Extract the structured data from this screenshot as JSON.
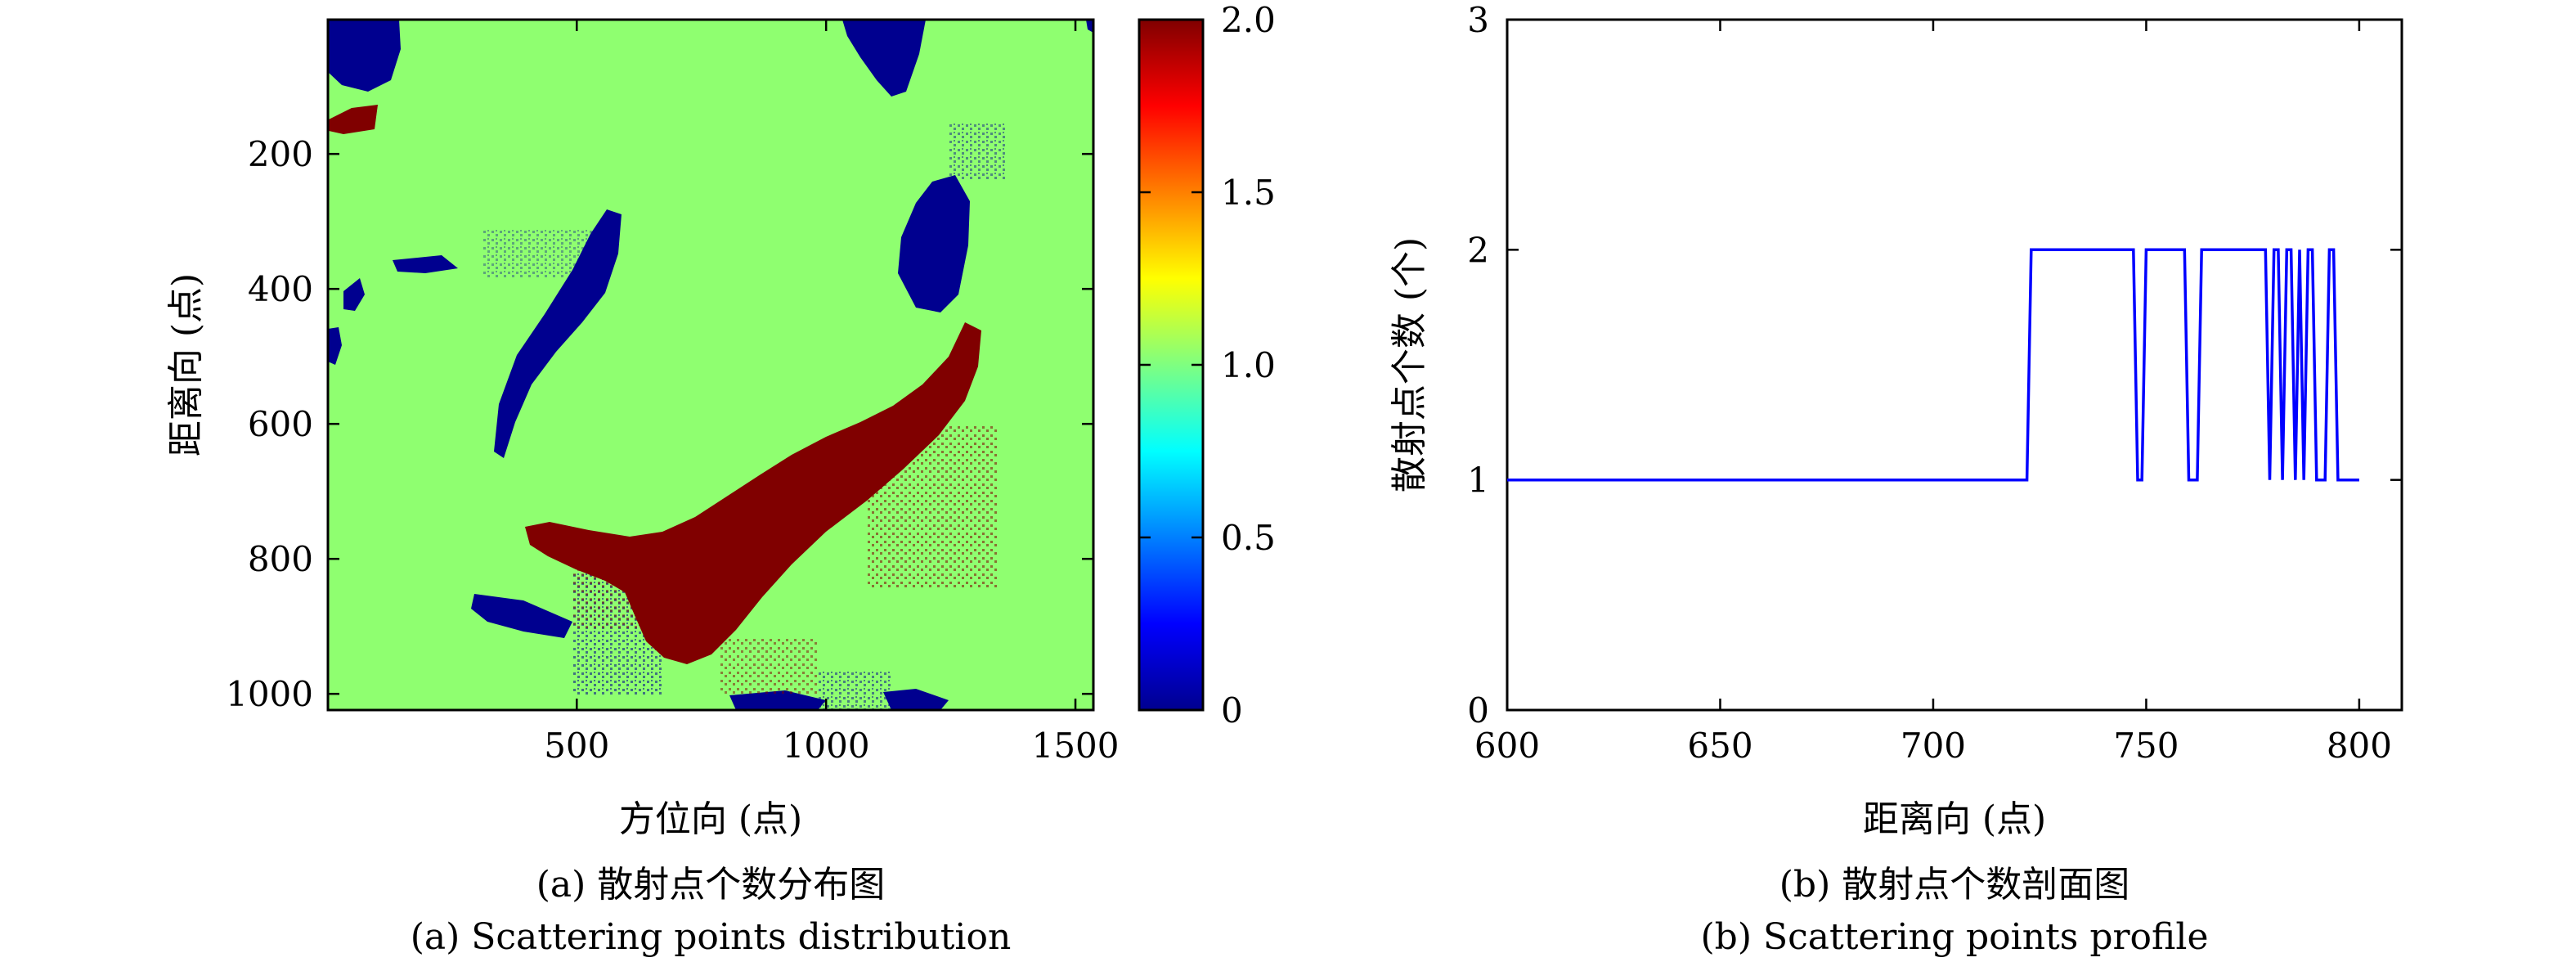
{
  "chart_data": [
    {
      "type": "heatmap",
      "xlabel": "方位向 (点)",
      "ylabel": "距离向 (点)",
      "xlim": [
        1,
        1536
      ],
      "ylim": [
        1,
        1024
      ],
      "y_inverted": true,
      "x_ticks": [
        500,
        1000,
        1500
      ],
      "y_ticks": [
        200,
        400,
        600,
        800,
        1000
      ],
      "colorbar": {
        "colormap": "jet",
        "range": [
          0,
          2
        ],
        "ticks": [
          "0",
          "0.5",
          "1.0",
          "1.5",
          "2.0"
        ],
        "tick_values": [
          0,
          0.5,
          1.0,
          1.5,
          2.0
        ]
      },
      "value_levels": [
        {
          "value": 0,
          "color": "#00008f"
        },
        {
          "value": 1,
          "color": "#8fff70"
        },
        {
          "value": 2,
          "color": "#800000"
        }
      ],
      "background_value": 1,
      "caption_cn": "(a) 散射点个数分布图",
      "caption_en": "(a) Scattering points distribution"
    },
    {
      "type": "line",
      "xlabel": "距离向 (点)",
      "ylabel": "散射点个数 (个)",
      "xlim": [
        600,
        810
      ],
      "ylim": [
        0,
        3
      ],
      "x_ticks": [
        600,
        650,
        700,
        750,
        800
      ],
      "y_ticks": [
        0,
        1,
        2,
        3
      ],
      "grid": false,
      "series": [
        {
          "color": "#0000ff",
          "x": [
            600,
            722,
            723,
            747,
            748,
            749,
            750,
            759,
            760,
            762,
            763,
            778,
            779,
            780,
            781,
            782,
            783,
            784,
            785,
            786,
            787,
            788,
            789,
            790,
            791,
            792,
            793,
            794,
            795,
            796,
            797,
            800
          ],
          "y": [
            1,
            1,
            2,
            2,
            1,
            1,
            2,
            2,
            1,
            1,
            2,
            2,
            1,
            2,
            2,
            1,
            2,
            2,
            1,
            2,
            1,
            2,
            2,
            1,
            1,
            1,
            2,
            2,
            1,
            1,
            1,
            1
          ]
        }
      ],
      "caption_cn": "(b) 散射点个数剖面图",
      "caption_en": "(b) Scattering points profile"
    }
  ]
}
